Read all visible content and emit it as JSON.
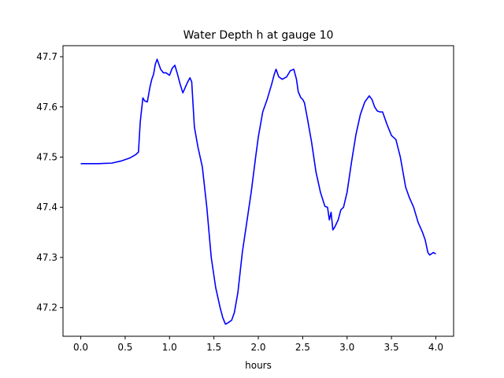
{
  "chart_data": {
    "type": "line",
    "title": "Water Depth h at gauge 10",
    "xlabel": "hours",
    "ylabel": "",
    "xlim": [
      -0.2,
      4.2
    ],
    "ylim": [
      47.143,
      47.722
    ],
    "xticks": [
      0.0,
      0.5,
      1.0,
      1.5,
      2.0,
      2.5,
      3.0,
      3.5,
      4.0
    ],
    "xtick_labels": [
      "0.0",
      "0.5",
      "1.0",
      "1.5",
      "2.0",
      "2.5",
      "3.0",
      "3.5",
      "4.0"
    ],
    "yticks": [
      47.2,
      47.3,
      47.4,
      47.5,
      47.6,
      47.7
    ],
    "ytick_labels": [
      "47.2",
      "47.3",
      "47.4",
      "47.5",
      "47.6",
      "47.7"
    ],
    "grid": false,
    "series": [
      {
        "color": "#0000ff",
        "x": [
          0.0,
          0.2,
          0.35,
          0.45,
          0.55,
          0.62,
          0.65,
          0.67,
          0.7,
          0.72,
          0.75,
          0.78,
          0.8,
          0.82,
          0.84,
          0.86,
          0.88,
          0.9,
          0.93,
          0.96,
          1.0,
          1.03,
          1.06,
          1.09,
          1.12,
          1.15,
          1.2,
          1.23,
          1.25,
          1.28,
          1.32,
          1.37,
          1.42,
          1.47,
          1.52,
          1.57,
          1.6,
          1.63,
          1.66,
          1.7,
          1.73,
          1.77,
          1.82,
          1.87,
          1.92,
          1.97,
          2.0,
          2.05,
          2.1,
          2.15,
          2.18,
          2.2,
          2.23,
          2.27,
          2.32,
          2.36,
          2.4,
          2.43,
          2.45,
          2.48,
          2.5,
          2.52,
          2.55,
          2.6,
          2.65,
          2.7,
          2.75,
          2.78,
          2.8,
          2.82,
          2.84,
          2.86,
          2.9,
          2.93,
          2.96,
          3.0,
          3.05,
          3.1,
          3.15,
          3.2,
          3.25,
          3.28,
          3.31,
          3.34,
          3.37,
          3.4,
          3.45,
          3.5,
          3.55,
          3.6,
          3.63,
          3.66,
          3.7,
          3.75,
          3.8,
          3.85,
          3.88,
          3.91,
          3.93,
          3.95,
          3.97,
          4.0
        ],
        "y": [
          47.487,
          47.487,
          47.488,
          47.492,
          47.498,
          47.505,
          47.51,
          47.57,
          47.618,
          47.612,
          47.61,
          47.64,
          47.655,
          47.665,
          47.685,
          47.695,
          47.685,
          47.675,
          47.668,
          47.668,
          47.663,
          47.677,
          47.683,
          47.665,
          47.645,
          47.628,
          47.648,
          47.658,
          47.65,
          47.56,
          47.52,
          47.48,
          47.4,
          47.3,
          47.24,
          47.2,
          47.18,
          47.167,
          47.17,
          47.175,
          47.19,
          47.23,
          47.31,
          47.37,
          47.43,
          47.5,
          47.54,
          47.59,
          47.615,
          47.645,
          47.665,
          47.675,
          47.66,
          47.655,
          47.66,
          47.672,
          47.675,
          47.655,
          47.63,
          47.618,
          47.615,
          47.608,
          47.58,
          47.53,
          47.47,
          47.43,
          47.402,
          47.4,
          47.375,
          47.39,
          47.355,
          47.36,
          47.375,
          47.395,
          47.4,
          47.43,
          47.49,
          47.545,
          47.585,
          47.61,
          47.622,
          47.615,
          47.6,
          47.592,
          47.59,
          47.59,
          47.565,
          47.543,
          47.535,
          47.5,
          47.47,
          47.44,
          47.42,
          47.4,
          47.37,
          47.35,
          47.335,
          47.31,
          47.305,
          47.307,
          47.31,
          47.307
        ]
      }
    ]
  }
}
